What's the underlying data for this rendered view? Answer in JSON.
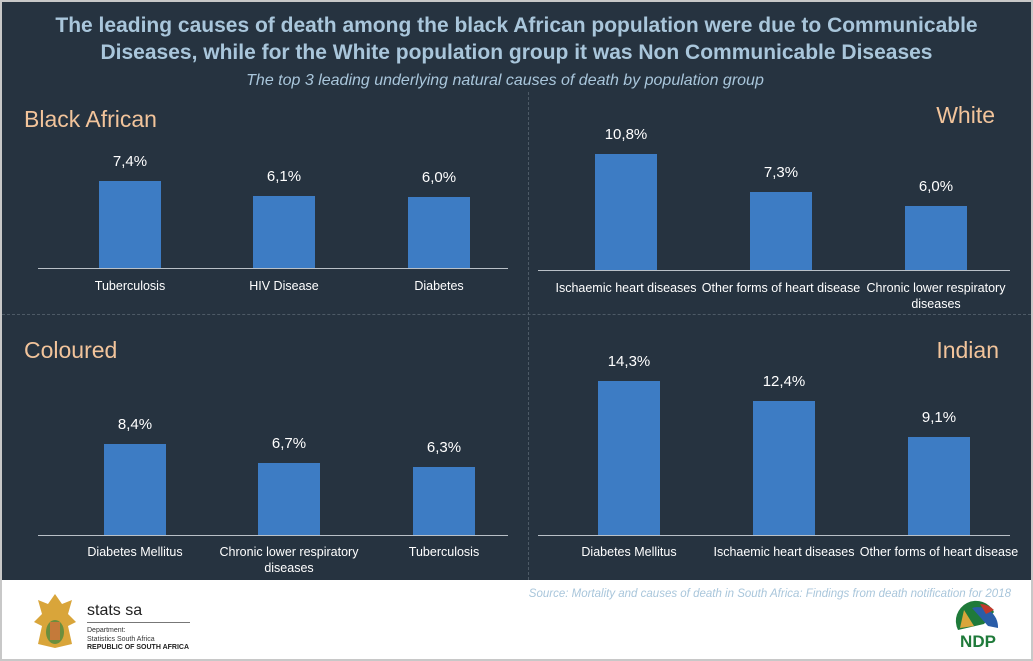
{
  "header": {
    "title_line1": "The leading causes of death among the black African population were due to Communicable",
    "title_line2": "Diseases, while for the White population group it was  Non Communicable Diseases",
    "subtitle": "The top 3 leading underlying natural causes of death by population group"
  },
  "chart_data": [
    {
      "type": "bar",
      "title": "Black African",
      "categories": [
        "Tuberculosis",
        "HIV Disease",
        "Diabetes"
      ],
      "values": [
        7.4,
        6.1,
        6.0
      ],
      "labels": [
        "7,4%",
        "6,1%",
        "6,0%"
      ],
      "unit": "%"
    },
    {
      "type": "bar",
      "title": "White",
      "categories": [
        "Ischaemic heart diseases",
        "Other forms of heart disease",
        "Chronic lower respiratory diseases"
      ],
      "values": [
        10.8,
        7.3,
        6.0
      ],
      "labels": [
        "10,8%",
        "7,3%",
        "6,0%"
      ],
      "unit": "%"
    },
    {
      "type": "bar",
      "title": "Coloured",
      "categories": [
        "Diabetes Mellitus",
        "Chronic lower respiratory diseases",
        "Tuberculosis"
      ],
      "values": [
        8.4,
        6.7,
        6.3
      ],
      "labels": [
        "8,4%",
        "6,7%",
        "6,3%"
      ],
      "unit": "%"
    },
    {
      "type": "bar",
      "title": "Indian",
      "categories": [
        "Diabetes Mellitus",
        "Ischaemic heart diseases",
        "Other forms of heart disease"
      ],
      "values": [
        14.3,
        12.4,
        9.1
      ],
      "labels": [
        "14,3%",
        "12,4%",
        "9,1%"
      ],
      "unit": "%"
    }
  ],
  "colors": {
    "bar": "#3d7cc4",
    "background": "#263340",
    "panel_title": "#f2c49b"
  },
  "footer": {
    "source": "Source: Mortality and causes of death in South Africa: Findings from death notification for 2018",
    "brand": "stats sa",
    "dept_line1": "Department:",
    "dept_line2": "Statistics South Africa",
    "country": "REPUBLIC OF SOUTH AFRICA",
    "ndp_logo": "NDP 2030"
  }
}
